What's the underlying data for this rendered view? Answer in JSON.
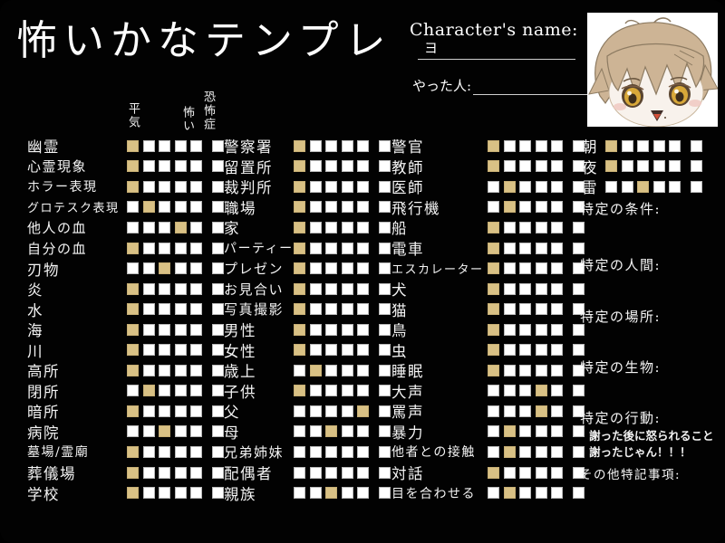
{
  "title": "怖いかなテンプレ",
  "header": {
    "character_name_label": "Character's name:",
    "character_name_value": "ヨ",
    "author_label": "やった人:",
    "author_value": ""
  },
  "scale": {
    "labels": [
      "平気",
      "怖い",
      "恐怖症"
    ],
    "levels": 6
  },
  "colors": {
    "background": "#020202",
    "box_empty": "#ffffff",
    "box_filled": "#d9c185",
    "text": "#ffffff"
  },
  "avatar": {
    "icon": "chibi-character-avatar"
  },
  "columns": [
    {
      "name": "col1",
      "items": [
        {
          "label": "幽霊",
          "checked": 0
        },
        {
          "label": "心霊現象",
          "checked": 0
        },
        {
          "label": "ホラー表現",
          "checked": 0
        },
        {
          "label": "グロテスク表現",
          "checked": 1
        },
        {
          "label": "他人の血",
          "checked": 3
        },
        {
          "label": "自分の血",
          "checked": 0
        },
        {
          "label": "刃物",
          "checked": 2
        },
        {
          "label": "炎",
          "checked": 0
        },
        {
          "label": "水",
          "checked": 0
        },
        {
          "label": "海",
          "checked": 0
        },
        {
          "label": "川",
          "checked": 0
        },
        {
          "label": "高所",
          "checked": 0
        },
        {
          "label": "閉所",
          "checked": 1
        },
        {
          "label": "暗所",
          "checked": 0
        },
        {
          "label": "病院",
          "checked": 2
        },
        {
          "label": "墓場/霊廟",
          "checked": 0
        },
        {
          "label": "葬儀場",
          "checked": 0
        },
        {
          "label": "学校",
          "checked": 0
        }
      ]
    },
    {
      "name": "col2",
      "items": [
        {
          "label": "警察署",
          "checked": 0
        },
        {
          "label": "留置所",
          "checked": 0
        },
        {
          "label": "裁判所",
          "checked": 0
        },
        {
          "label": "職場",
          "checked": 0
        },
        {
          "label": "家",
          "checked": 0
        },
        {
          "label": "パーティー",
          "checked": 0
        },
        {
          "label": "プレゼン",
          "checked": 0
        },
        {
          "label": "お見合い",
          "checked": 0
        },
        {
          "label": "写真撮影",
          "checked": 0
        },
        {
          "label": "男性",
          "checked": 0
        },
        {
          "label": "女性",
          "checked": 0
        },
        {
          "label": "歳上",
          "checked": 1
        },
        {
          "label": "子供",
          "checked": 0
        },
        {
          "label": "父",
          "checked": 4
        },
        {
          "label": "母",
          "checked": 2
        },
        {
          "label": "兄弟姉妹",
          "checked": null
        },
        {
          "label": "配偶者",
          "checked": null
        },
        {
          "label": "親族",
          "checked": 2
        }
      ]
    },
    {
      "name": "col3",
      "items": [
        {
          "label": "警官",
          "checked": 0
        },
        {
          "label": "教師",
          "checked": 0
        },
        {
          "label": "医師",
          "checked": 1
        },
        {
          "label": "飛行機",
          "checked": 1
        },
        {
          "label": "船",
          "checked": 0
        },
        {
          "label": "電車",
          "checked": 0
        },
        {
          "label": "エスカレーター",
          "checked": 0
        },
        {
          "label": "犬",
          "checked": 0
        },
        {
          "label": "猫",
          "checked": 0
        },
        {
          "label": "鳥",
          "checked": 0
        },
        {
          "label": "虫",
          "checked": 0
        },
        {
          "label": "睡眠",
          "checked": 0
        },
        {
          "label": "大声",
          "checked": 3
        },
        {
          "label": "罵声",
          "checked": 3
        },
        {
          "label": "暴力",
          "checked": 1
        },
        {
          "label": "他者との接触",
          "checked": 1
        },
        {
          "label": "対話",
          "checked": 0
        },
        {
          "label": "目を合わせる",
          "checked": 1
        }
      ]
    }
  ],
  "extras": {
    "items": [
      {
        "label": "朝",
        "checked": 0
      },
      {
        "label": "夜",
        "checked": 0
      },
      {
        "label": "雷",
        "checked": 2
      }
    ],
    "sections": [
      {
        "label": "特定の条件:"
      },
      {
        "label": "特定の人間:"
      },
      {
        "label": "特定の場所:"
      },
      {
        "label": "特定の生物:"
      },
      {
        "label": "特定の行動:",
        "notes": [
          "謝った後に怒られること",
          "謝ったじゃん！！！"
        ]
      },
      {
        "label": "その他特記事項:"
      }
    ]
  }
}
